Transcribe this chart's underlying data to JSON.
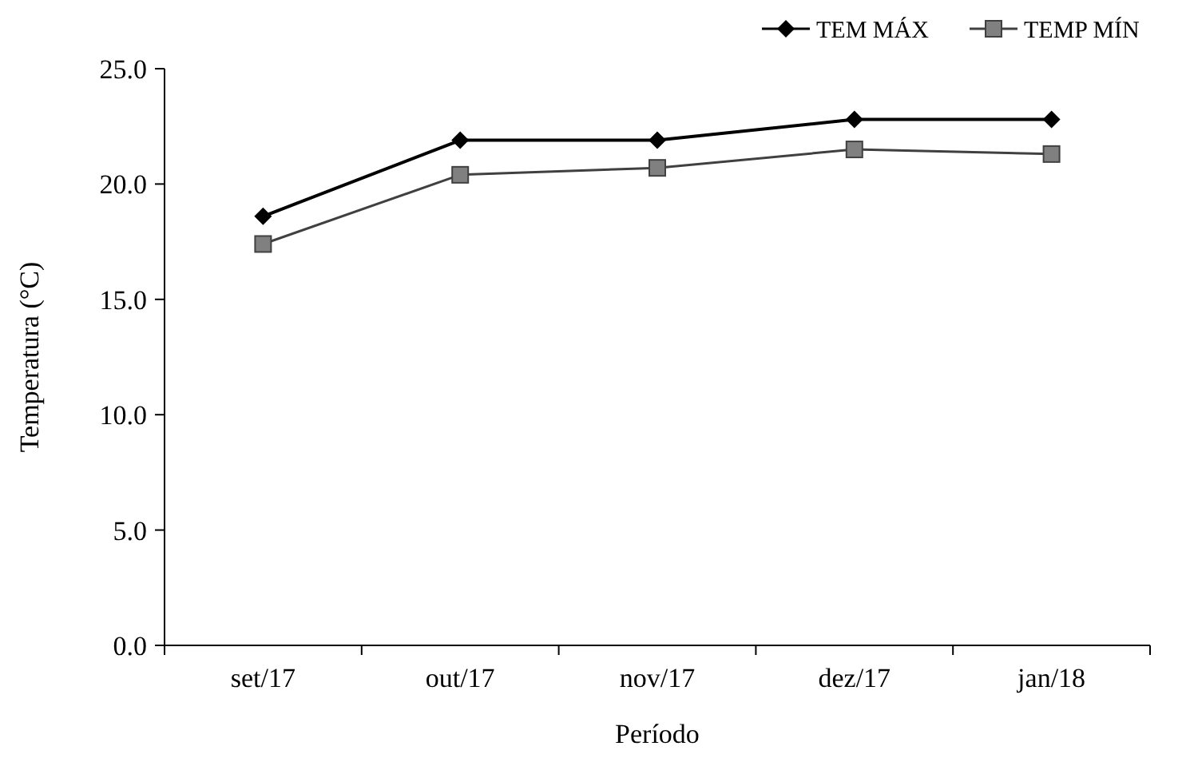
{
  "chart_data": {
    "type": "line",
    "xlabel": "Período",
    "ylabel": "Temperatura (°C)",
    "categories": [
      "set/17",
      "out/17",
      "nov/17",
      "dez/17",
      "jan/18"
    ],
    "series": [
      {
        "name": "TEM MÁX",
        "color": "#000000",
        "marker": "diamond",
        "values": [
          18.6,
          21.9,
          21.9,
          22.8,
          22.8
        ]
      },
      {
        "name": "TEMP MÍN",
        "color": "#808080",
        "marker": "square",
        "values": [
          17.4,
          20.4,
          20.7,
          21.5,
          21.3
        ]
      }
    ],
    "ylim": [
      0,
      25
    ],
    "yticks": [
      {
        "value": 0,
        "label": "0.0"
      },
      {
        "value": 5,
        "label": "5.0"
      },
      {
        "value": 10,
        "label": "10.0"
      },
      {
        "value": 15,
        "label": "15.0"
      },
      {
        "value": 20,
        "label": "20.0"
      },
      {
        "value": 25,
        "label": "25.0"
      }
    ],
    "grid": false,
    "legend": "top right"
  }
}
